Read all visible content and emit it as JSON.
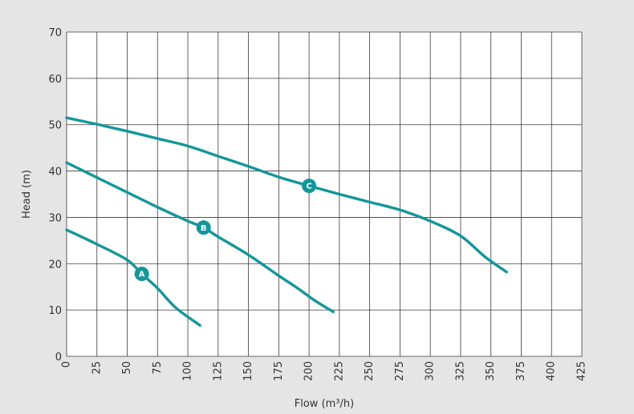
{
  "chart_data": {
    "type": "line",
    "title": "",
    "xlabel": "Flow (m³/h)",
    "ylabel": "Head (m)",
    "xlim": [
      0,
      425
    ],
    "ylim": [
      0,
      70
    ],
    "x_ticks": [
      0,
      25,
      50,
      75,
      100,
      125,
      150,
      175,
      200,
      225,
      250,
      275,
      300,
      325,
      350,
      375,
      400,
      425
    ],
    "y_ticks": [
      0,
      10,
      20,
      30,
      40,
      50,
      60,
      70
    ],
    "grid": true,
    "colors": {
      "series": "#14969a",
      "marker": "#14969a",
      "background": "#e5e5e5",
      "plot": "#ffffff"
    },
    "series": [
      {
        "name": "A",
        "label_at": [
          62,
          17.8
        ],
        "points": [
          [
            0,
            27.3
          ],
          [
            25,
            24.2
          ],
          [
            50,
            20.8
          ],
          [
            62,
            17.8
          ],
          [
            75,
            14.7
          ],
          [
            90,
            10.5
          ],
          [
            110,
            6.7
          ]
        ]
      },
      {
        "name": "B",
        "label_at": [
          113,
          27.8
        ],
        "points": [
          [
            0,
            41.8
          ],
          [
            25,
            38.6
          ],
          [
            50,
            35.4
          ],
          [
            75,
            32.2
          ],
          [
            100,
            29.2
          ],
          [
            113,
            27.8
          ],
          [
            125,
            25.8
          ],
          [
            150,
            21.9
          ],
          [
            175,
            17.4
          ],
          [
            190,
            14.8
          ],
          [
            205,
            12.0
          ],
          [
            220,
            9.6
          ]
        ]
      },
      {
        "name": "C",
        "label_at": [
          200,
          36.8
        ],
        "points": [
          [
            0,
            51.5
          ],
          [
            25,
            50.1
          ],
          [
            50,
            48.6
          ],
          [
            75,
            47.0
          ],
          [
            100,
            45.4
          ],
          [
            125,
            43.2
          ],
          [
            150,
            41.0
          ],
          [
            175,
            38.7
          ],
          [
            200,
            36.8
          ],
          [
            225,
            35.0
          ],
          [
            250,
            33.3
          ],
          [
            275,
            31.6
          ],
          [
            300,
            29.2
          ],
          [
            325,
            26.0
          ],
          [
            345,
            21.5
          ],
          [
            363,
            18.2
          ]
        ]
      }
    ]
  }
}
